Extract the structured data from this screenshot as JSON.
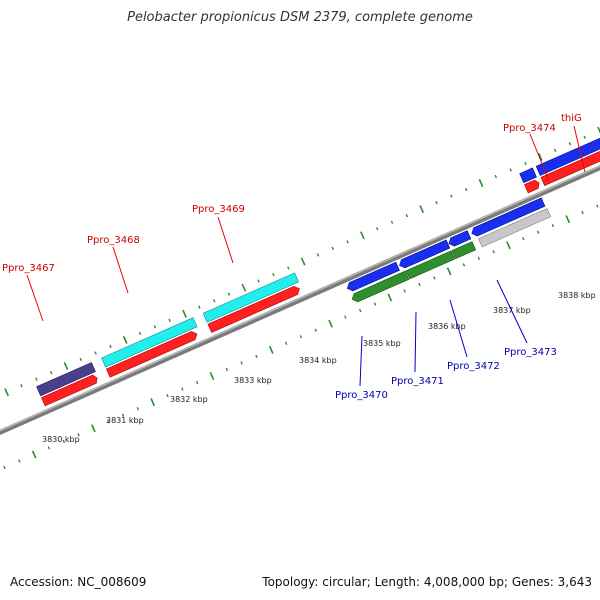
{
  "title": "Pelobacter propionicus DSM 2379, complete genome",
  "footer": {
    "accession_label": "Accession:",
    "accession": "NC_008609",
    "topology_label": "Topology:",
    "topology": "circular",
    "length_label": "Length:",
    "length": "4,008,000 bp",
    "genes_label": "Genes:",
    "genes": "3,643"
  },
  "colors": {
    "backbone": "#909090",
    "tick": "#2e8b2e",
    "forward_label": "#cc0000",
    "reverse_label": "#0000aa",
    "red": "#ff2020",
    "cyan": "#22eeee",
    "navy": "#4a3f8a",
    "blue": "#1a2ef0",
    "green": "#2f8f2f",
    "grey": "#c8c8c8",
    "steelblue": "#3a7fc0"
  },
  "kbp_labels": [
    "3830 kbp",
    "3831 kbp",
    "3832 kbp",
    "3833 kbp",
    "3834 kbp",
    "3835 kbp",
    "3836 kbp",
    "3837 kbp",
    "3838 kbp"
  ],
  "forward_genes": [
    {
      "name": "Ppro_3467"
    },
    {
      "name": "Ppro_3468"
    },
    {
      "name": "Ppro_3469"
    },
    {
      "name": "Ppro_3474"
    },
    {
      "name": "thiG"
    }
  ],
  "reverse_genes": [
    {
      "name": "Ppro_3470"
    },
    {
      "name": "Ppro_3471"
    },
    {
      "name": "Ppro_3472"
    },
    {
      "name": "Ppro_3473"
    }
  ]
}
